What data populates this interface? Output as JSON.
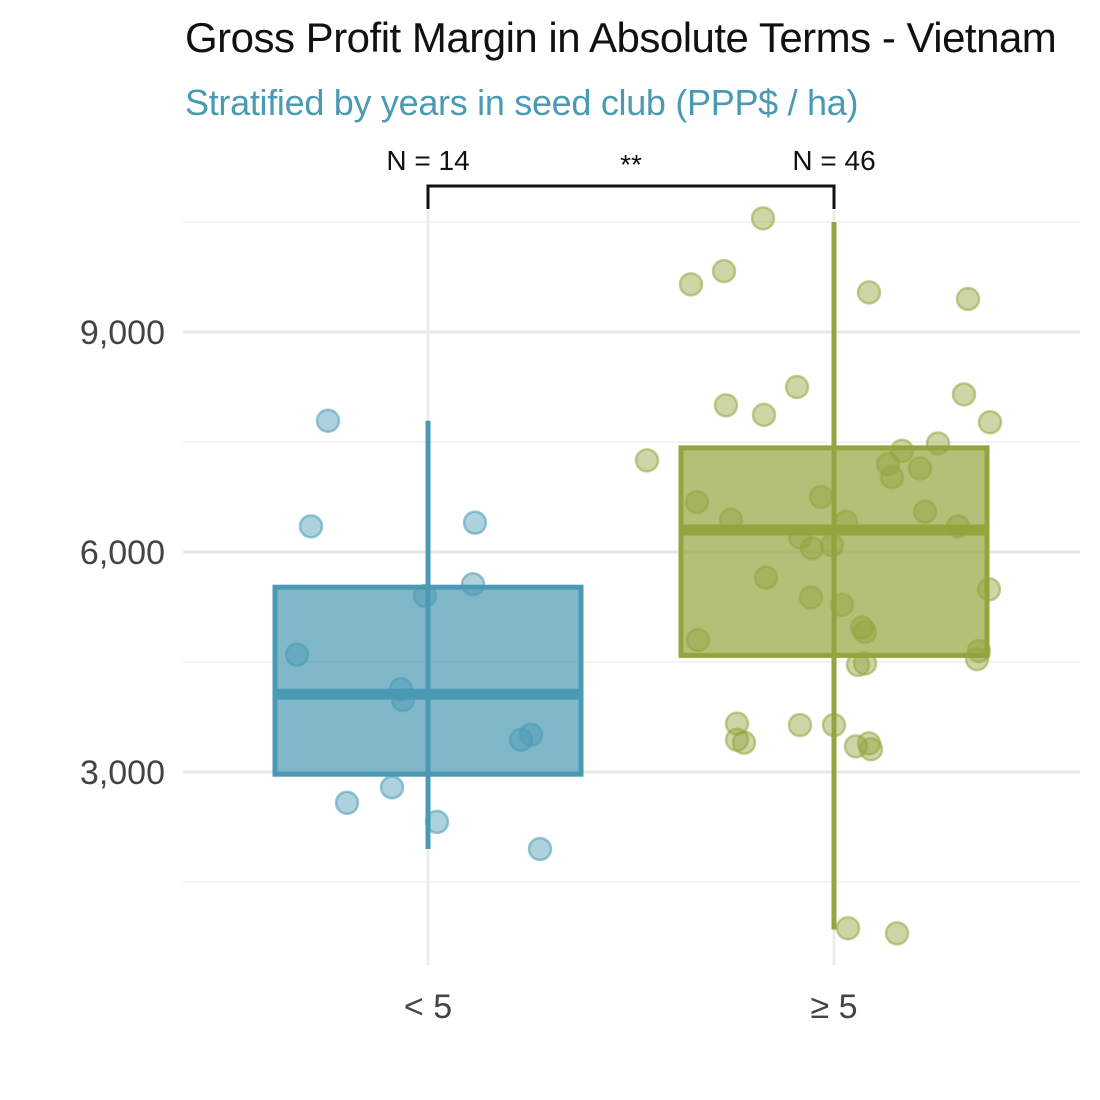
{
  "chart_data": {
    "type": "boxplot",
    "title": "Gross Profit Margin in Absolute Terms - Vietnam",
    "subtitle": "Stratified by years in seed club (PPP$ / ha)",
    "xlabel": "",
    "ylabel": "",
    "categories": [
      "< 5",
      "≥ 5"
    ],
    "y_ticks": [
      3000,
      6000,
      9000
    ],
    "y_tick_labels": [
      "3,000",
      "6,000",
      "9,000"
    ],
    "ylim": [
      -50,
      11400
    ],
    "grid": true,
    "legend": "none",
    "colors": {
      "< 5": "#4a9ab4",
      "≥ 5": "#93a53e"
    },
    "significance": "**",
    "groups": [
      {
        "name": "< 5",
        "n_label": "N = 14",
        "box": {
          "whisker_low": 1950,
          "q1": 2970,
          "median": 4060,
          "q3": 5520,
          "whisker_high": 7790
        },
        "points": [
          7790,
          6350,
          6400,
          4600,
          5400,
          5560,
          4130,
          3980,
          3440,
          3510,
          2580,
          2790,
          2320,
          1950
        ]
      },
      {
        "name": "≥ 5",
        "n_label": "N = 46",
        "box": {
          "whisker_low": 850,
          "q1": 4590,
          "median": 6300,
          "q3": 7420,
          "whisker_high": 10500
        },
        "points": [
          10550,
          9830,
          9650,
          9540,
          9450,
          8250,
          8150,
          8000,
          7870,
          7770,
          7480,
          7380,
          7250,
          7200,
          7140,
          7020,
          6750,
          6680,
          6550,
          6440,
          6410,
          6350,
          6200,
          6090,
          6050,
          5650,
          5490,
          5380,
          5280,
          4970,
          4910,
          4800,
          4650,
          4540,
          4480,
          4460,
          3660,
          3640,
          3640,
          3440,
          3400,
          3350,
          3390,
          3310,
          870,
          800
        ]
      }
    ]
  }
}
